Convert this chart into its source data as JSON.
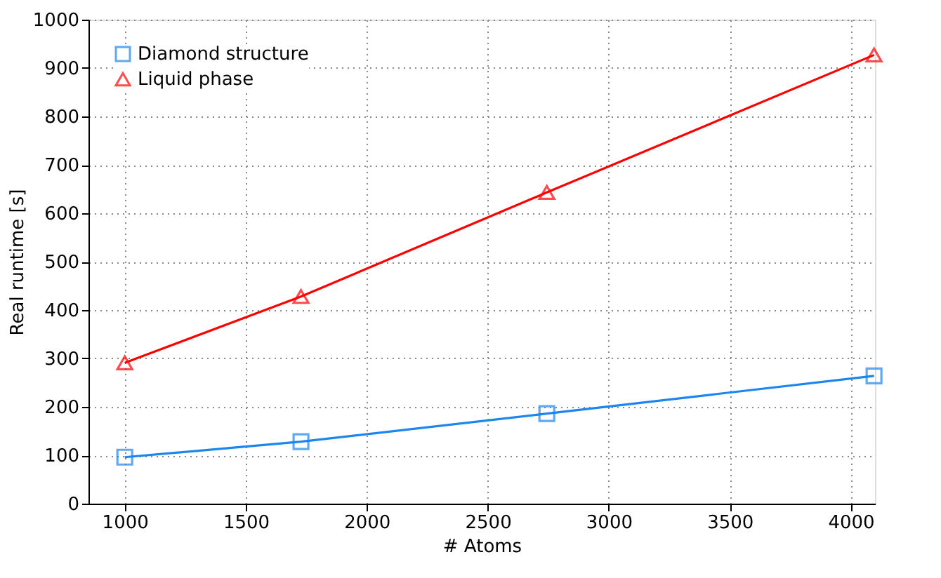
{
  "chart_data": {
    "type": "line",
    "xlabel": "# Atoms",
    "ylabel": "Real runtime [s]",
    "x": [
      1000,
      1728,
      2744,
      4096
    ],
    "series": [
      {
        "name": "Diamond structure",
        "color": "#1c86ee",
        "values": [
          96,
          128,
          186,
          264
        ],
        "marker": "square"
      },
      {
        "name": "Liquid phase",
        "color": "#ff0000",
        "values": [
          291,
          428,
          643,
          927
        ],
        "marker": "triangle"
      }
    ],
    "xlim": [
      850,
      4100
    ],
    "xticks": [
      1000,
      1500,
      2000,
      2500,
      3000,
      3500,
      4000
    ],
    "ylim": [
      0,
      1000
    ],
    "yticks": [
      0,
      100,
      200,
      300,
      400,
      500,
      600,
      700,
      800,
      900,
      1000
    ],
    "grid": true,
    "legend": "top left",
    "line_style": "solid"
  }
}
